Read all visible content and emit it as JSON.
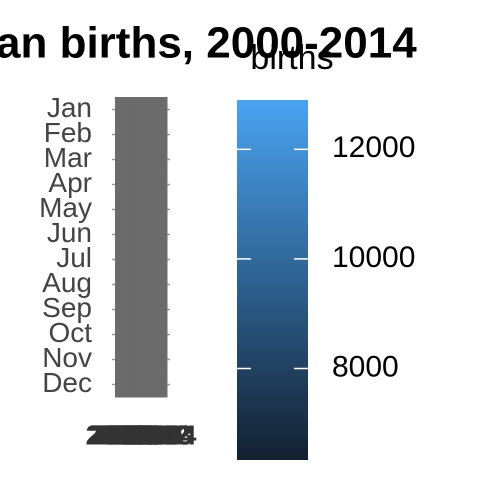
{
  "chart_data": {
    "type": "heatmap",
    "title": "an births, 2000-2014",
    "categories": [
      "2000",
      "2001",
      "2002",
      "2003",
      "2004",
      "2005",
      "2006",
      "2007",
      "2008",
      "2009",
      "2010",
      "2011",
      "2012",
      "2013",
      "2014"
    ],
    "rows": [
      "Jan",
      "Feb",
      "Mar",
      "Apr",
      "May",
      "Jun",
      "Jul",
      "Aug",
      "Sep",
      "Oct",
      "Nov",
      "Dec"
    ],
    "values": [
      [
        null,
        null,
        null,
        null,
        null,
        null,
        null,
        null,
        null,
        null,
        null,
        null,
        null,
        null,
        null
      ],
      [
        null,
        null,
        null,
        null,
        null,
        null,
        null,
        null,
        null,
        null,
        null,
        null,
        null,
        null,
        null
      ],
      [
        null,
        null,
        null,
        null,
        null,
        null,
        null,
        null,
        null,
        null,
        null,
        null,
        null,
        null,
        null
      ],
      [
        null,
        null,
        null,
        null,
        null,
        null,
        null,
        null,
        null,
        null,
        null,
        null,
        null,
        null,
        null
      ],
      [
        null,
        null,
        null,
        null,
        null,
        null,
        null,
        null,
        null,
        null,
        null,
        null,
        null,
        null,
        null
      ],
      [
        null,
        null,
        null,
        null,
        null,
        null,
        null,
        null,
        null,
        null,
        null,
        null,
        null,
        null,
        null
      ],
      [
        null,
        null,
        null,
        null,
        null,
        null,
        null,
        null,
        null,
        null,
        null,
        null,
        null,
        null,
        null
      ],
      [
        null,
        null,
        null,
        null,
        null,
        null,
        null,
        null,
        null,
        null,
        null,
        null,
        null,
        null,
        null
      ],
      [
        null,
        null,
        null,
        null,
        null,
        null,
        null,
        null,
        null,
        null,
        null,
        null,
        null,
        null,
        null
      ],
      [
        null,
        null,
        null,
        null,
        null,
        null,
        null,
        null,
        null,
        null,
        null,
        null,
        null,
        null,
        null
      ],
      [
        null,
        null,
        null,
        null,
        null,
        null,
        null,
        null,
        null,
        null,
        null,
        null,
        null,
        null,
        null
      ],
      [
        null,
        null,
        null,
        null,
        null,
        null,
        null,
        null,
        null,
        null,
        null,
        null,
        null,
        null,
        null
      ]
    ],
    "na_color": "#6b6b6b",
    "legend_title": "births",
    "clim": [
      6330,
      12900
    ],
    "cticks": [
      8000,
      10000,
      12000
    ],
    "colors": [
      "#132030",
      "#4aa3f0"
    ]
  }
}
